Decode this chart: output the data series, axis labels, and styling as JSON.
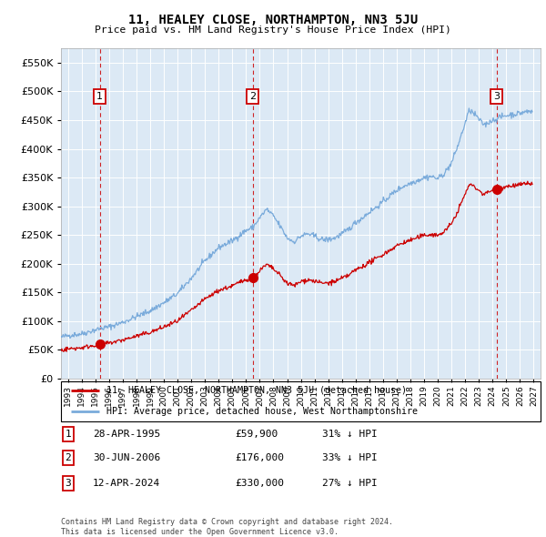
{
  "title": "11, HEALEY CLOSE, NORTHAMPTON, NN3 5JU",
  "subtitle": "Price paid vs. HM Land Registry's House Price Index (HPI)",
  "ytick_values": [
    0,
    50000,
    100000,
    150000,
    200000,
    250000,
    300000,
    350000,
    400000,
    450000,
    500000,
    550000
  ],
  "ylim": [
    0,
    575000
  ],
  "xlim_start": 1992.5,
  "xlim_end": 2027.5,
  "background_color": "#dce9f5",
  "outer_bg_color": "#ffffff",
  "grid_color": "#ffffff",
  "sale_color": "#cc0000",
  "hpi_color": "#7aabdb",
  "vline_color": "#cc0000",
  "purchases": [
    {
      "date_num": 1995.32,
      "price": 59900,
      "label": "1"
    },
    {
      "date_num": 2006.49,
      "price": 176000,
      "label": "2"
    },
    {
      "date_num": 2024.28,
      "price": 330000,
      "label": "3"
    }
  ],
  "legend_sale_label": "11, HEALEY CLOSE, NORTHAMPTON, NN3 5JU (detached house)",
  "legend_hpi_label": "HPI: Average price, detached house, West Northamptonshire",
  "table_rows": [
    {
      "num": "1",
      "date": "28-APR-1995",
      "price": "£59,900",
      "hpi": "31% ↓ HPI"
    },
    {
      "num": "2",
      "date": "30-JUN-2006",
      "price": "£176,000",
      "hpi": "33% ↓ HPI"
    },
    {
      "num": "3",
      "date": "12-APR-2024",
      "price": "£330,000",
      "hpi": "27% ↓ HPI"
    }
  ],
  "footnote": "Contains HM Land Registry data © Crown copyright and database right 2024.\nThis data is licensed under the Open Government Licence v3.0."
}
